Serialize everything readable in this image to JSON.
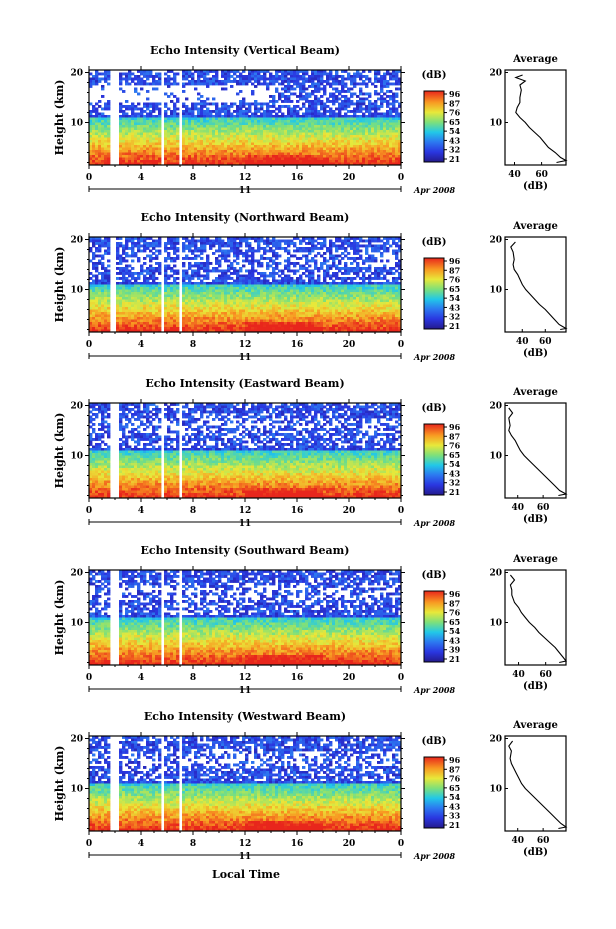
{
  "figure": {
    "xlabel_bottom": "Local Time",
    "date_label": "Apr 2008",
    "day_label": "11",
    "ylabel": "Height (km)",
    "colorbar_unit": "(dB)",
    "profile_title": "Average",
    "profile_xlabel": "(dB)"
  },
  "chart_data": [
    {
      "type": "heatmap",
      "title": "Echo Intensity (Vertical Beam)",
      "xlabel": "",
      "ylabel": "Height (km)",
      "xticks": [
        "0",
        "4",
        "8",
        "12",
        "16",
        "20",
        "0"
      ],
      "xlim": [
        0,
        24
      ],
      "yticks": [
        "20",
        "10"
      ],
      "ylim": [
        1.5,
        20.5
      ],
      "colorbar_ticks": [
        "96",
        "87",
        "76",
        "65",
        "54",
        "43",
        "32",
        "21"
      ],
      "colorbar_range": [
        21,
        96
      ],
      "gaps_hours": [
        [
          1.6,
          2.4
        ],
        [
          5.5,
          5.7
        ],
        [
          7.0,
          7.2
        ]
      ],
      "profile": {
        "xticks": [
          "40",
          "60"
        ],
        "xlim": [
          33,
          78
        ],
        "yticks": [
          "20",
          "10"
        ],
        "points": [
          [
            46,
            19.5
          ],
          [
            41,
            19
          ],
          [
            48,
            18.3
          ],
          [
            44,
            17.5
          ],
          [
            45,
            16.5
          ],
          [
            44,
            15
          ],
          [
            44,
            14
          ],
          [
            42,
            13
          ],
          [
            41,
            12
          ],
          [
            44,
            11
          ],
          [
            48,
            10
          ],
          [
            51,
            9
          ],
          [
            55,
            8
          ],
          [
            59,
            7
          ],
          [
            62,
            6
          ],
          [
            65,
            5
          ],
          [
            70,
            4
          ],
          [
            74,
            3
          ],
          [
            78,
            2.4
          ],
          [
            71,
            2
          ]
        ]
      }
    },
    {
      "type": "heatmap",
      "title": "Echo Intensity (Northward Beam)",
      "xlabel": "",
      "ylabel": "Height (km)",
      "xticks": [
        "0",
        "4",
        "8",
        "12",
        "16",
        "20",
        "0"
      ],
      "xlim": [
        0,
        24
      ],
      "yticks": [
        "20",
        "10"
      ],
      "ylim": [
        1.5,
        20.5
      ],
      "colorbar_ticks": [
        "96",
        "87",
        "76",
        "65",
        "54",
        "43",
        "32",
        "21"
      ],
      "colorbar_range": [
        21,
        96
      ],
      "gaps_hours": [
        [
          1.6,
          2.1
        ],
        [
          5.5,
          5.7
        ],
        [
          7.0,
          7.2
        ]
      ],
      "profile": {
        "xticks": [
          "40",
          "60"
        ],
        "xlim": [
          25,
          78
        ],
        "yticks": [
          "20",
          "10"
        ],
        "points": [
          [
            34,
            19.5
          ],
          [
            30,
            18.5
          ],
          [
            32,
            17.5
          ],
          [
            33,
            16
          ],
          [
            32,
            15
          ],
          [
            33,
            14
          ],
          [
            36,
            13
          ],
          [
            38,
            12
          ],
          [
            40,
            11
          ],
          [
            43,
            10
          ],
          [
            47,
            9
          ],
          [
            51,
            8
          ],
          [
            55,
            7
          ],
          [
            60,
            6
          ],
          [
            64,
            5
          ],
          [
            68,
            4
          ],
          [
            72,
            3
          ],
          [
            78,
            2.2
          ],
          [
            73,
            2
          ]
        ]
      }
    },
    {
      "type": "heatmap",
      "title": "Echo Intensity (Eastward Beam)",
      "xlabel": "",
      "ylabel": "Height (km)",
      "xticks": [
        "0",
        "4",
        "8",
        "12",
        "16",
        "20",
        "0"
      ],
      "xlim": [
        0,
        24
      ],
      "yticks": [
        "20",
        "10"
      ],
      "ylim": [
        1.5,
        20.5
      ],
      "colorbar_ticks": [
        "96",
        "87",
        "76",
        "65",
        "54",
        "43",
        "32",
        "21"
      ],
      "colorbar_range": [
        21,
        96
      ],
      "gaps_hours": [
        [
          1.6,
          2.2
        ],
        [
          5.5,
          5.7
        ],
        [
          7.0,
          7.2
        ]
      ],
      "profile": {
        "xticks": [
          "40",
          "60"
        ],
        "xlim": [
          30,
          78
        ],
        "yticks": [
          "20",
          "10"
        ],
        "points": [
          [
            33,
            19.5
          ],
          [
            36,
            18.5
          ],
          [
            33,
            17.5
          ],
          [
            34,
            16
          ],
          [
            33,
            15
          ],
          [
            35,
            14
          ],
          [
            38,
            13
          ],
          [
            40,
            12
          ],
          [
            42,
            11
          ],
          [
            45,
            10
          ],
          [
            49,
            9
          ],
          [
            53,
            8
          ],
          [
            57,
            7
          ],
          [
            61,
            6
          ],
          [
            65,
            5
          ],
          [
            69,
            4
          ],
          [
            73,
            3
          ],
          [
            78,
            2.3
          ],
          [
            72,
            2
          ]
        ]
      }
    },
    {
      "type": "heatmap",
      "title": "Echo Intensity (Southward Beam)",
      "xlabel": "",
      "ylabel": "Height (km)",
      "xticks": [
        "0",
        "4",
        "8",
        "12",
        "16",
        "20",
        "0"
      ],
      "xlim": [
        0,
        24
      ],
      "yticks": [
        "20",
        "10"
      ],
      "ylim": [
        1.5,
        20.5
      ],
      "colorbar_ticks": [
        "96",
        "87",
        "76",
        "65",
        "54",
        "43",
        "39",
        "21"
      ],
      "colorbar_range": [
        21,
        96
      ],
      "gaps_hours": [
        [
          1.6,
          2.3
        ],
        [
          5.5,
          5.7
        ],
        [
          7.0,
          7.2
        ]
      ],
      "profile": {
        "xticks": [
          "40",
          "60"
        ],
        "xlim": [
          30,
          75
        ],
        "yticks": [
          "20",
          "10"
        ],
        "points": [
          [
            34,
            19.5
          ],
          [
            37,
            18.5
          ],
          [
            34,
            17.5
          ],
          [
            35,
            16.5
          ],
          [
            35,
            15.5
          ],
          [
            37,
            14
          ],
          [
            40,
            13
          ],
          [
            42,
            12
          ],
          [
            45,
            11
          ],
          [
            48,
            10
          ],
          [
            52,
            9
          ],
          [
            55,
            8
          ],
          [
            59,
            7
          ],
          [
            63,
            6
          ],
          [
            67,
            5
          ],
          [
            70,
            4
          ],
          [
            73,
            3
          ],
          [
            75,
            2.3
          ],
          [
            70,
            2
          ]
        ]
      }
    },
    {
      "type": "heatmap",
      "title": "Echo Intensity (Westward Beam)",
      "xlabel": "Local Time",
      "ylabel": "Height (km)",
      "xticks": [
        "0",
        "4",
        "8",
        "12",
        "16",
        "20",
        "0"
      ],
      "xlim": [
        0,
        24
      ],
      "yticks": [
        "20",
        "10"
      ],
      "ylim": [
        1.5,
        20.5
      ],
      "colorbar_ticks": [
        "96",
        "87",
        "76",
        "65",
        "54",
        "43",
        "33",
        "21"
      ],
      "colorbar_range": [
        21,
        96
      ],
      "gaps_hours": [
        [
          1.6,
          2.3
        ],
        [
          5.5,
          5.7
        ],
        [
          7.0,
          7.2
        ]
      ],
      "profile": {
        "xticks": [
          "40",
          "60"
        ],
        "xlim": [
          30,
          78
        ],
        "yticks": [
          "20",
          "10"
        ],
        "points": [
          [
            36,
            19.5
          ],
          [
            33,
            18.5
          ],
          [
            35,
            17.5
          ],
          [
            34,
            16
          ],
          [
            35,
            15
          ],
          [
            37,
            14
          ],
          [
            39,
            13
          ],
          [
            41,
            12
          ],
          [
            43,
            11
          ],
          [
            46,
            10
          ],
          [
            50,
            9
          ],
          [
            54,
            8
          ],
          [
            58,
            7
          ],
          [
            62,
            6
          ],
          [
            66,
            5
          ],
          [
            70,
            4
          ],
          [
            74,
            3
          ],
          [
            78,
            2.3
          ],
          [
            72,
            2
          ]
        ]
      }
    }
  ]
}
